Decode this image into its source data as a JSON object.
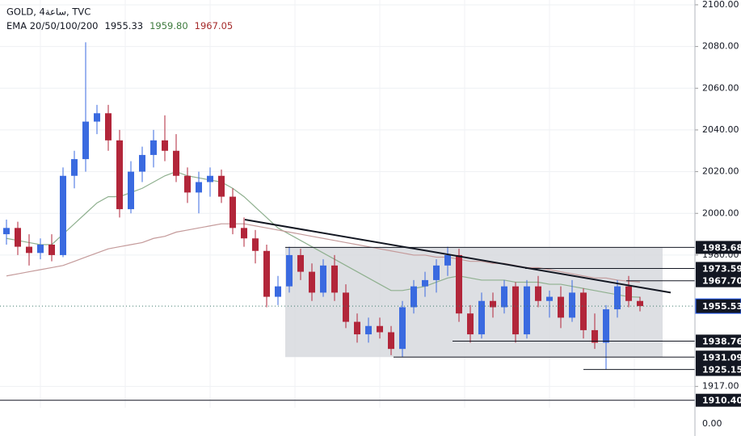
{
  "chart_data": {
    "type": "candlestick",
    "title": "GOLD, 4ساعة, TVC",
    "indicator": {
      "label": "EMA 20/50/100/200",
      "values": [
        {
          "value": 1955.33,
          "label": "1955.33",
          "color": "#131722"
        },
        {
          "value": 1959.8,
          "label": "1959.80",
          "color": "#3d7a3d"
        },
        {
          "value": 1967.05,
          "label": "1967.05",
          "color": "#a52a2a"
        }
      ]
    },
    "ylim": [
      1906.8,
      2102.3
    ],
    "yticks": [
      {
        "value": 2100,
        "label": "2100.00"
      },
      {
        "value": 2080,
        "label": "2080.00"
      },
      {
        "value": 2060,
        "label": "2060.00"
      },
      {
        "value": 2040,
        "label": "2040.00"
      },
      {
        "value": 2020,
        "label": "2020.00"
      },
      {
        "value": 2000,
        "label": "2000.00"
      },
      {
        "value": 1980,
        "label": "1980.00"
      },
      {
        "value": 1917,
        "label": "1917.00"
      }
    ],
    "grid": true,
    "up_color": "#3a6ae0",
    "down_color": "#b2263a",
    "candles": [
      [
        1990,
        1997,
        1985,
        1993
      ],
      [
        1993,
        1996,
        1980,
        1984
      ],
      [
        1984,
        1990,
        1975,
        1981
      ],
      [
        1981,
        1988,
        1978,
        1985
      ],
      [
        1985,
        1990,
        1977,
        1980
      ],
      [
        1980,
        2022,
        1979,
        2018
      ],
      [
        2018,
        2030,
        2012,
        2026
      ],
      [
        2026,
        2082,
        2020,
        2044
      ],
      [
        2044,
        2052,
        2038,
        2048
      ],
      [
        2048,
        2052,
        2030,
        2035
      ],
      [
        2035,
        2040,
        1998,
        2002
      ],
      [
        2002,
        2025,
        2000,
        2020
      ],
      [
        2020,
        2032,
        2015,
        2028
      ],
      [
        2028,
        2040,
        2022,
        2035
      ],
      [
        2035,
        2047,
        2025,
        2030
      ],
      [
        2030,
        2038,
        2015,
        2018
      ],
      [
        2018,
        2022,
        2005,
        2010
      ],
      [
        2010,
        2020,
        2000,
        2015
      ],
      [
        2015,
        2022,
        2008,
        2018
      ],
      [
        2018,
        2021,
        2005,
        2008
      ],
      [
        2008,
        2012,
        1990,
        1993
      ],
      [
        1993,
        1998,
        1984,
        1988
      ],
      [
        1988,
        1992,
        1976,
        1982
      ],
      [
        1982,
        1985,
        1955,
        1960
      ],
      [
        1960,
        1970,
        1956,
        1965
      ],
      [
        1965,
        1984,
        1962,
        1980
      ],
      [
        1980,
        1983,
        1968,
        1972
      ],
      [
        1972,
        1976,
        1958,
        1962
      ],
      [
        1962,
        1978,
        1960,
        1975
      ],
      [
        1975,
        1980,
        1958,
        1962
      ],
      [
        1962,
        1966,
        1945,
        1948
      ],
      [
        1948,
        1952,
        1938,
        1942
      ],
      [
        1942,
        1950,
        1938,
        1946
      ],
      [
        1946,
        1950,
        1940,
        1943
      ],
      [
        1943,
        1946,
        1932,
        1935
      ],
      [
        1935,
        1958,
        1931,
        1955
      ],
      [
        1955,
        1968,
        1952,
        1965
      ],
      [
        1965,
        1972,
        1960,
        1968
      ],
      [
        1968,
        1978,
        1962,
        1975
      ],
      [
        1975,
        1984,
        1970,
        1980
      ],
      [
        1980,
        1983,
        1948,
        1952
      ],
      [
        1952,
        1956,
        1938,
        1942
      ],
      [
        1942,
        1962,
        1940,
        1958
      ],
      [
        1958,
        1962,
        1950,
        1955
      ],
      [
        1955,
        1968,
        1952,
        1965
      ],
      [
        1965,
        1967,
        1938,
        1942
      ],
      [
        1942,
        1968,
        1940,
        1965
      ],
      [
        1965,
        1970,
        1955,
        1958
      ],
      [
        1958,
        1963,
        1950,
        1960
      ],
      [
        1960,
        1965,
        1945,
        1950
      ],
      [
        1950,
        1968,
        1948,
        1962
      ],
      [
        1962,
        1964,
        1940,
        1944
      ],
      [
        1944,
        1952,
        1935,
        1938
      ],
      [
        1938,
        1956,
        1925,
        1954
      ],
      [
        1954,
        1968,
        1950,
        1965
      ],
      [
        1965,
        1970,
        1955,
        1958
      ],
      [
        1958,
        1960,
        1953,
        1955.53
      ]
    ],
    "lines": [
      {
        "color": "#8fb08f",
        "values": [
          1988,
          1987,
          1986,
          1985,
          1985,
          1990,
          1995,
          2000,
          2005,
          2008,
          2008,
          2010,
          2012,
          2015,
          2018,
          2020,
          2018,
          2017,
          2016,
          2015,
          2012,
          2008,
          2003,
          1998,
          1993,
          1990,
          1987,
          1984,
          1981,
          1978,
          1975,
          1972,
          1969,
          1966,
          1963,
          1963,
          1964,
          1965,
          1967,
          1969,
          1970,
          1969,
          1968,
          1968,
          1968,
          1967,
          1967,
          1967,
          1966,
          1966,
          1965,
          1964,
          1963,
          1962,
          1961,
          1960,
          1959.8
        ]
      },
      {
        "color": "#c49a9a",
        "values": [
          1970,
          1971,
          1972,
          1973,
          1974,
          1975,
          1977,
          1979,
          1981,
          1983,
          1984,
          1985,
          1986,
          1988,
          1989,
          1991,
          1992,
          1993,
          1994,
          1995,
          1995,
          1995,
          1994,
          1993,
          1992,
          1991,
          1990,
          1989,
          1988,
          1987,
          1986,
          1985,
          1984,
          1983,
          1982,
          1981,
          1980,
          1980,
          1979,
          1979,
          1978,
          1977,
          1977,
          1976,
          1976,
          1975,
          1974,
          1974,
          1973,
          1972,
          1971,
          1970,
          1969,
          1969,
          1968,
          1967.5,
          1967.05
        ]
      }
    ],
    "trend_line": {
      "color": "#131722",
      "values": [
        1997,
        1962
      ]
    },
    "levels": [
      {
        "value": 1983.68,
        "label": "1983.68"
      },
      {
        "value": 1973.59,
        "label": "1973.59"
      },
      {
        "value": 1967.7,
        "label": "1967.70"
      },
      {
        "value": 1938.76,
        "label": "1938.76"
      },
      {
        "value": 1931.09,
        "label": "1931.09"
      },
      {
        "value": 1925.15,
        "label": "1925.15"
      },
      {
        "value": 1910.4,
        "label": "1910.40"
      }
    ],
    "last_price": {
      "value": 1955.53,
      "label": "1955.53",
      "color": "#131722"
    },
    "lower_pane": {
      "yticks": [
        {
          "value": 0,
          "label": "0.00"
        }
      ]
    }
  }
}
